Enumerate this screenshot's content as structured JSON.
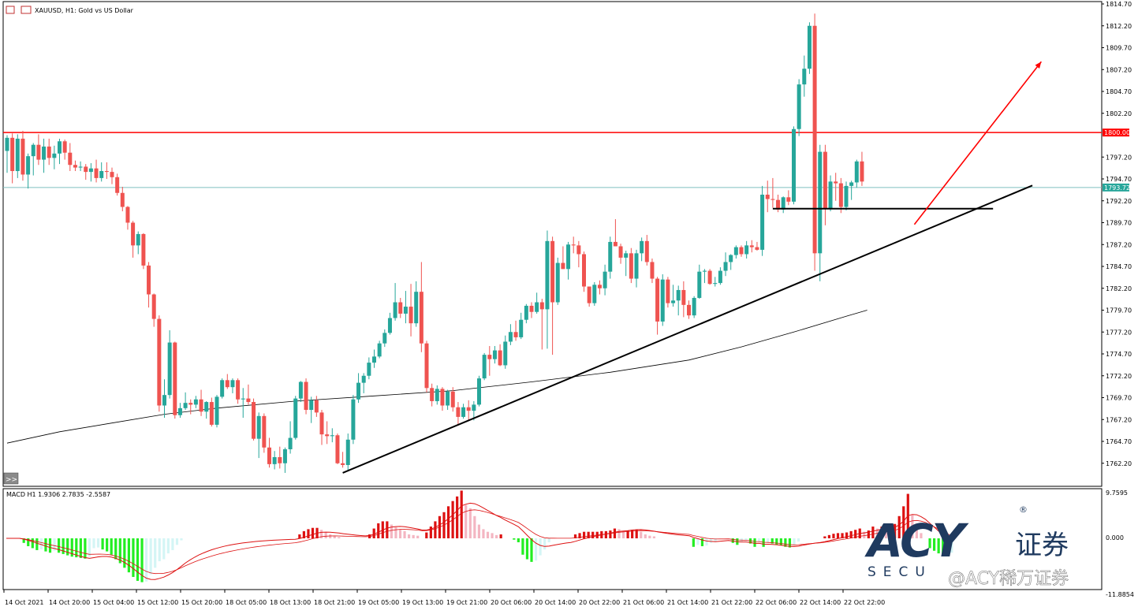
{
  "symbol": {
    "title": "XAUUSD, H1:  Gold vs US Dollar"
  },
  "colors": {
    "bull": "#26a69a",
    "bear": "#ef5350",
    "resistance": "#ff0000",
    "bid_line": "#7fbfbf",
    "macd_pos_up": "#dd1111",
    "macd_pos_down": "#f4b6c2",
    "macd_neg_down": "#22ee22",
    "macd_neg_up": "#d4f5f5",
    "signal": "#dd1111",
    "logo": "#1f3a5f"
  },
  "price_axis": {
    "labels": [
      "1814.70",
      "1812.20",
      "1809.70",
      "1807.20",
      "1804.70",
      "1802.20",
      "1797.20",
      "1794.70",
      "1792.20",
      "1789.70",
      "1787.20",
      "1784.70",
      "1782.20",
      "1779.70",
      "1777.20",
      "1774.70",
      "1772.20",
      "1769.70",
      "1767.20",
      "1764.70",
      "1762.20"
    ],
    "resistance_label": "1800.00",
    "bid_label": "1793.72"
  },
  "macd_axis": {
    "top": "9.7595",
    "zero": "0.000",
    "bottom": "-11.8854"
  },
  "macd_label": "MACD H1 1.9306 2.7835 -2.5587",
  "time_axis": [
    "14 Oct 2021",
    "14 Oct 20:00",
    "15 Oct 04:00",
    "15 Oct 12:00",
    "15 Oct 20:00",
    "18 Oct 05:00",
    "18 Oct 13:00",
    "18 Oct 21:00",
    "19 Oct 05:00",
    "19 Oct 13:00",
    "19 Oct 21:00",
    "20 Oct 06:00",
    "20 Oct 14:00",
    "20 Oct 22:00",
    "21 Oct 06:00",
    "21 Oct 14:00",
    "21 Oct 22:00",
    "22 Oct 06:00",
    "22 Oct 14:00",
    "22 Oct 22:00"
  ],
  "scroll_button": ">>",
  "logo": {
    "brand": "ACY",
    "cn": "证券",
    "sub": "SECU",
    "reg": "®",
    "watermark": "@ACY稀万证券"
  },
  "chart_data": {
    "type": "candlestick",
    "title": "XAUUSD, H1:  Gold vs US Dollar",
    "timeframe": "H1",
    "ylim": [
      1760.9,
      1815.3
    ],
    "resistance_level": 1800.0,
    "bid": 1793.72,
    "ohlc": [
      [
        1797.9,
        1799.7,
        1795.4,
        1799.4
      ],
      [
        1799.4,
        1799.9,
        1794.2,
        1795.6
      ],
      [
        1795.6,
        1799.8,
        1794.8,
        1799.3
      ],
      [
        1799.3,
        1800.2,
        1794.5,
        1795.2
      ],
      [
        1795.2,
        1797.6,
        1793.6,
        1797.3
      ],
      [
        1797.3,
        1798.8,
        1795.1,
        1798.6
      ],
      [
        1798.6,
        1799.8,
        1796.3,
        1796.9
      ],
      [
        1796.9,
        1799.3,
        1795.4,
        1798.4
      ],
      [
        1798.4,
        1799.3,
        1796.3,
        1797.1
      ],
      [
        1797.1,
        1798.5,
        1795.8,
        1797.6
      ],
      [
        1797.6,
        1799.3,
        1796.4,
        1799.0
      ],
      [
        1799.0,
        1799.2,
        1796.9,
        1797.7
      ],
      [
        1797.7,
        1798.8,
        1795.6,
        1796.3
      ],
      [
        1796.3,
        1796.8,
        1795.6,
        1796.0
      ],
      [
        1796.0,
        1796.7,
        1795.6,
        1796.1
      ],
      [
        1796.1,
        1796.4,
        1794.6,
        1795.5
      ],
      [
        1795.5,
        1796.5,
        1794.4,
        1795.9
      ],
      [
        1795.9,
        1796.9,
        1794.3,
        1794.8
      ],
      [
        1794.8,
        1796.6,
        1794.4,
        1795.6
      ],
      [
        1795.6,
        1796.6,
        1794.7,
        1795.5
      ],
      [
        1795.5,
        1796.0,
        1794.1,
        1794.9
      ],
      [
        1794.9,
        1795.3,
        1792.8,
        1793.1
      ],
      [
        1793.1,
        1793.8,
        1791.0,
        1791.5
      ],
      [
        1791.5,
        1791.6,
        1788.9,
        1789.7
      ],
      [
        1789.7,
        1789.9,
        1785.7,
        1787.1
      ],
      [
        1787.1,
        1788.7,
        1786.1,
        1788.4
      ],
      [
        1788.4,
        1788.5,
        1784.4,
        1784.8
      ],
      [
        1784.8,
        1785.2,
        1780.0,
        1781.5
      ],
      [
        1781.5,
        1781.6,
        1777.8,
        1778.7
      ],
      [
        1778.7,
        1779.1,
        1768.1,
        1768.8
      ],
      [
        1768.8,
        1771.8,
        1767.4,
        1770.0
      ],
      [
        1770.0,
        1777.4,
        1769.6,
        1776.0
      ],
      [
        1776.0,
        1776.1,
        1767.3,
        1767.7
      ],
      [
        1767.7,
        1769.1,
        1767.4,
        1768.5
      ],
      [
        1768.5,
        1770.3,
        1768.3,
        1769.1
      ],
      [
        1769.1,
        1769.5,
        1767.8,
        1768.9
      ],
      [
        1768.9,
        1769.9,
        1768.5,
        1769.5
      ],
      [
        1769.5,
        1770.6,
        1767.6,
        1768.1
      ],
      [
        1768.1,
        1769.3,
        1767.3,
        1769.2
      ],
      [
        1769.2,
        1769.7,
        1766.4,
        1766.6
      ],
      [
        1766.6,
        1770.0,
        1766.3,
        1769.8
      ],
      [
        1769.8,
        1771.9,
        1769.6,
        1771.7
      ],
      [
        1771.7,
        1772.4,
        1770.7,
        1770.9
      ],
      [
        1770.9,
        1771.9,
        1770.2,
        1771.7
      ],
      [
        1771.7,
        1771.9,
        1769.0,
        1769.5
      ],
      [
        1769.5,
        1770.8,
        1767.4,
        1769.6
      ],
      [
        1769.6,
        1771.2,
        1768.9,
        1769.2
      ],
      [
        1769.2,
        1769.6,
        1764.8,
        1765.0
      ],
      [
        1765.0,
        1768.0,
        1762.8,
        1767.6
      ],
      [
        1767.6,
        1767.9,
        1763.4,
        1764.0
      ],
      [
        1764.0,
        1765.1,
        1761.7,
        1762.1
      ],
      [
        1762.1,
        1763.6,
        1761.5,
        1762.9
      ],
      [
        1762.9,
        1764.1,
        1761.6,
        1762.2
      ],
      [
        1762.2,
        1764.0,
        1761.1,
        1763.8
      ],
      [
        1763.8,
        1767.0,
        1763.3,
        1765.1
      ],
      [
        1765.1,
        1769.9,
        1764.9,
        1769.6
      ],
      [
        1769.6,
        1771.6,
        1769.2,
        1771.5
      ],
      [
        1771.5,
        1771.9,
        1767.8,
        1768.3
      ],
      [
        1768.3,
        1769.8,
        1766.8,
        1769.4
      ],
      [
        1769.4,
        1769.9,
        1767.5,
        1768.0
      ],
      [
        1768.0,
        1768.3,
        1764.3,
        1765.5
      ],
      [
        1765.5,
        1767.0,
        1764.4,
        1765.3
      ],
      [
        1765.3,
        1766.2,
        1764.6,
        1765.4
      ],
      [
        1765.4,
        1765.6,
        1762.1,
        1762.2
      ],
      [
        1762.2,
        1763.5,
        1761.7,
        1762.0
      ],
      [
        1762.0,
        1765.6,
        1761.3,
        1764.9
      ],
      [
        1764.9,
        1770.0,
        1764.4,
        1769.5
      ],
      [
        1769.5,
        1772.5,
        1769.1,
        1771.4
      ],
      [
        1771.4,
        1772.5,
        1770.2,
        1772.2
      ],
      [
        1772.2,
        1774.3,
        1771.8,
        1773.7
      ],
      [
        1773.7,
        1775.2,
        1773.1,
        1774.4
      ],
      [
        1774.4,
        1776.2,
        1774.2,
        1775.9
      ],
      [
        1775.9,
        1777.5,
        1775.5,
        1777.1
      ],
      [
        1777.1,
        1779.4,
        1776.9,
        1778.8
      ],
      [
        1778.8,
        1782.8,
        1778.5,
        1780.6
      ],
      [
        1780.6,
        1781.1,
        1778.8,
        1779.3
      ],
      [
        1779.3,
        1781.9,
        1778.2,
        1780.1
      ],
      [
        1780.1,
        1782.7,
        1776.7,
        1778.2
      ],
      [
        1778.2,
        1783.0,
        1777.8,
        1781.8
      ],
      [
        1781.8,
        1785.2,
        1774.9,
        1775.9
      ],
      [
        1775.9,
        1776.2,
        1770.3,
        1770.8
      ],
      [
        1770.8,
        1771.3,
        1768.7,
        1769.3
      ],
      [
        1769.3,
        1771.1,
        1768.9,
        1770.7
      ],
      [
        1770.7,
        1770.9,
        1768.2,
        1768.8
      ],
      [
        1768.8,
        1770.6,
        1768.3,
        1770.4
      ],
      [
        1770.4,
        1770.9,
        1768.1,
        1768.6
      ],
      [
        1768.6,
        1769.2,
        1766.5,
        1767.5
      ],
      [
        1767.5,
        1769.0,
        1767.3,
        1768.6
      ],
      [
        1768.6,
        1769.4,
        1767.1,
        1768.2
      ],
      [
        1768.2,
        1769.3,
        1767.1,
        1768.9
      ],
      [
        1768.9,
        1772.2,
        1768.7,
        1771.9
      ],
      [
        1771.9,
        1774.8,
        1771.7,
        1774.6
      ],
      [
        1774.6,
        1775.6,
        1772.2,
        1774.1
      ],
      [
        1774.1,
        1775.6,
        1773.6,
        1775.1
      ],
      [
        1775.1,
        1775.8,
        1773.3,
        1773.4
      ],
      [
        1773.4,
        1776.8,
        1773.0,
        1776.1
      ],
      [
        1776.1,
        1778.1,
        1775.7,
        1777.2
      ],
      [
        1777.2,
        1778.5,
        1776.2,
        1776.6
      ],
      [
        1776.6,
        1779.4,
        1776.4,
        1778.6
      ],
      [
        1778.6,
        1780.4,
        1778.2,
        1780.2
      ],
      [
        1780.2,
        1780.6,
        1778.8,
        1779.5
      ],
      [
        1779.5,
        1781.7,
        1779.3,
        1780.6
      ],
      [
        1780.6,
        1781.0,
        1775.2,
        1779.8
      ],
      [
        1779.8,
        1788.8,
        1775.3,
        1787.6
      ],
      [
        1787.6,
        1788.1,
        1774.6,
        1780.6
      ],
      [
        1780.6,
        1785.7,
        1780.3,
        1785.1
      ],
      [
        1785.1,
        1787.0,
        1784.4,
        1784.4
      ],
      [
        1784.4,
        1787.5,
        1783.2,
        1787.2
      ],
      [
        1787.2,
        1788.1,
        1786.2,
        1787.1
      ],
      [
        1787.1,
        1787.6,
        1784.6,
        1786.1
      ],
      [
        1786.1,
        1786.4,
        1781.8,
        1782.4
      ],
      [
        1782.4,
        1782.4,
        1780.1,
        1780.5
      ],
      [
        1780.5,
        1782.9,
        1780.2,
        1782.6
      ],
      [
        1782.6,
        1783.1,
        1781.5,
        1782.2
      ],
      [
        1782.2,
        1784.9,
        1781.4,
        1784.1
      ],
      [
        1784.1,
        1788.1,
        1783.3,
        1787.5
      ],
      [
        1787.5,
        1790.1,
        1787.0,
        1787.0
      ],
      [
        1787.0,
        1787.3,
        1785.0,
        1785.7
      ],
      [
        1785.7,
        1786.5,
        1783.6,
        1786.2
      ],
      [
        1786.2,
        1786.8,
        1782.8,
        1783.3
      ],
      [
        1783.3,
        1786.6,
        1782.3,
        1786.2
      ],
      [
        1786.2,
        1788.0,
        1785.3,
        1787.6
      ],
      [
        1787.6,
        1788.3,
        1784.8,
        1785.2
      ],
      [
        1785.2,
        1785.6,
        1782.8,
        1783.3
      ],
      [
        1783.3,
        1783.5,
        1776.9,
        1778.4
      ],
      [
        1778.4,
        1783.8,
        1777.9,
        1783.2
      ],
      [
        1783.2,
        1783.5,
        1780.0,
        1780.5
      ],
      [
        1780.5,
        1782.6,
        1780.1,
        1780.8
      ],
      [
        1780.8,
        1782.5,
        1779.1,
        1782.0
      ],
      [
        1782.0,
        1783.0,
        1778.9,
        1780.3
      ],
      [
        1780.3,
        1780.8,
        1778.7,
        1779.1
      ],
      [
        1779.1,
        1781.3,
        1778.8,
        1781.1
      ],
      [
        1781.1,
        1784.9,
        1781.0,
        1784.1
      ],
      [
        1784.1,
        1784.4,
        1782.8,
        1784.2
      ],
      [
        1784.2,
        1784.4,
        1782.6,
        1782.7
      ],
      [
        1782.7,
        1783.5,
        1782.4,
        1782.8
      ],
      [
        1782.8,
        1784.6,
        1782.6,
        1784.2
      ],
      [
        1784.2,
        1786.3,
        1783.6,
        1785.2
      ],
      [
        1785.2,
        1786.1,
        1784.3,
        1786.0
      ],
      [
        1786.0,
        1787.1,
        1785.6,
        1786.9
      ],
      [
        1786.9,
        1787.1,
        1785.8,
        1786.1
      ],
      [
        1786.1,
        1787.6,
        1785.6,
        1787.1
      ],
      [
        1787.1,
        1787.7,
        1786.3,
        1786.9
      ],
      [
        1786.9,
        1787.5,
        1786.5,
        1786.6
      ],
      [
        1786.6,
        1793.9,
        1785.9,
        1792.9
      ],
      [
        1792.9,
        1794.5,
        1790.9,
        1792.4
      ],
      [
        1792.4,
        1794.8,
        1791.4,
        1792.3
      ],
      [
        1792.3,
        1792.9,
        1790.9,
        1791.2
      ],
      [
        1791.2,
        1792.7,
        1790.8,
        1792.6
      ],
      [
        1792.6,
        1793.4,
        1791.7,
        1792.1
      ],
      [
        1792.1,
        1800.7,
        1791.8,
        1800.4
      ],
      [
        1800.4,
        1806.1,
        1799.6,
        1805.5
      ],
      [
        1805.5,
        1808.8,
        1804.1,
        1807.3
      ],
      [
        1807.3,
        1812.6,
        1806.7,
        1812.2
      ],
      [
        1812.2,
        1813.6,
        1784.2,
        1786.2
      ],
      [
        1786.2,
        1798.6,
        1783.0,
        1797.8
      ],
      [
        1797.8,
        1798.6,
        1789.4,
        1791.3
      ],
      [
        1791.3,
        1795.1,
        1791.0,
        1794.4
      ],
      [
        1794.4,
        1795.4,
        1792.2,
        1794.2
      ],
      [
        1794.2,
        1794.8,
        1790.8,
        1791.5
      ],
      [
        1791.5,
        1794.4,
        1791.1,
        1793.9
      ],
      [
        1793.9,
        1794.5,
        1792.3,
        1794.3
      ],
      [
        1794.3,
        1796.9,
        1793.7,
        1796.7
      ],
      [
        1796.7,
        1797.8,
        1793.9,
        1794.4
      ]
    ],
    "ma": [
      [
        0,
        1764.5
      ],
      [
        10,
        1765.8
      ],
      [
        20,
        1766.8
      ],
      [
        30,
        1767.8
      ],
      [
        40,
        1768.5
      ],
      [
        55,
        1769.3
      ],
      [
        70,
        1769.9
      ],
      [
        85,
        1770.5
      ],
      [
        100,
        1771.5
      ],
      [
        115,
        1772.6
      ],
      [
        130,
        1774.0
      ],
      [
        140,
        1775.5
      ],
      [
        150,
        1777.2
      ],
      [
        160,
        1779.0
      ],
      [
        164,
        1779.7
      ]
    ],
    "trendline": [
      [
        1761.1,
        1793.95
      ]
    ],
    "support_level": 1791.3,
    "arrow": [
      [
        1789.5
      ],
      [
        1808.1
      ]
    ],
    "macd": {
      "ylim": [
        -11.8854,
        9.7595
      ],
      "hist": [
        0,
        0,
        0,
        0,
        -0.7,
        -1.2,
        -1.5,
        -1.8,
        -1.7,
        -2.0,
        -2.2,
        -1.9,
        -2.2,
        -2.4,
        -2.6,
        -2.8,
        -2.9,
        -3.0,
        -3.1,
        -2.8,
        -1.5,
        -1.4,
        -1.7,
        -2.0,
        -2.5,
        -3.2,
        -3.8,
        -4.5,
        -5.2,
        -5.9,
        -6.5,
        -6.7,
        -6.6,
        -5.5,
        -4.5,
        -3.5,
        -3.2,
        -2.3,
        -1.8,
        -1.0,
        -0.3,
        0,
        0,
        0,
        0,
        0,
        0,
        0,
        0,
        0,
        0,
        0,
        0,
        0,
        0,
        0,
        0,
        0,
        0,
        0,
        0,
        0,
        0,
        0,
        0,
        0,
        0,
        0.6,
        1.1,
        1.4,
        1.6,
        1.6,
        1.3,
        0.9,
        0.6,
        0.3,
        0.2,
        0,
        0,
        0,
        0,
        0,
        0,
        0.6,
        1.5,
        2.3,
        2.6,
        2.6,
        2.1,
        1.7,
        1.4,
        1.1,
        0.6,
        0.5,
        0.4,
        0,
        0.9,
        1.8,
        2.6,
        3.4,
        4.0,
        4.9,
        5.7,
        6.4,
        7.3,
        5.1,
        4.6,
        3.4,
        2.1,
        1.4,
        1.0,
        0.8,
        0.5,
        0.6,
        0,
        0,
        -0.2,
        -0.6,
        -2.5,
        -3.2,
        -3.6,
        -3.4,
        -2.6,
        -1.7,
        -0.6,
        0,
        0,
        0,
        0,
        0,
        0.6,
        0.8,
        1.0,
        1.0,
        1.0,
        1.0,
        1.1,
        1.1,
        1.2,
        1.5,
        1.4,
        1.1,
        1.2,
        1.3,
        1.3,
        1.0,
        0.6,
        0.4,
        0.3,
        0,
        0,
        0,
        0,
        0,
        0,
        0,
        0,
        -1.3,
        -1.0,
        -1.2,
        -1.1,
        -0.7,
        -0.5,
        0,
        0,
        0,
        -0.7,
        -1.0,
        -0.5,
        -0.4,
        -0.8,
        -1.3,
        -0.5,
        -1.3,
        -0.7,
        -0.8,
        -1.0,
        -1.1,
        -1.3,
        -1.4,
        -1.0,
        -0.5,
        0,
        0,
        0,
        0,
        0,
        0.3,
        0.5,
        0.7,
        0.8,
        0.8,
        0.9,
        1.1,
        1.3,
        1.5,
        1.0,
        1.2,
        1.8,
        1.5,
        1.8,
        1.6,
        1.1,
        2.2,
        3.4,
        4.9,
        6.8,
        3.6,
        2.3,
        0.8,
        0,
        -1.5,
        -1.9,
        -2.3,
        -2.6,
        -2.5,
        -2.2
      ]
    }
  }
}
